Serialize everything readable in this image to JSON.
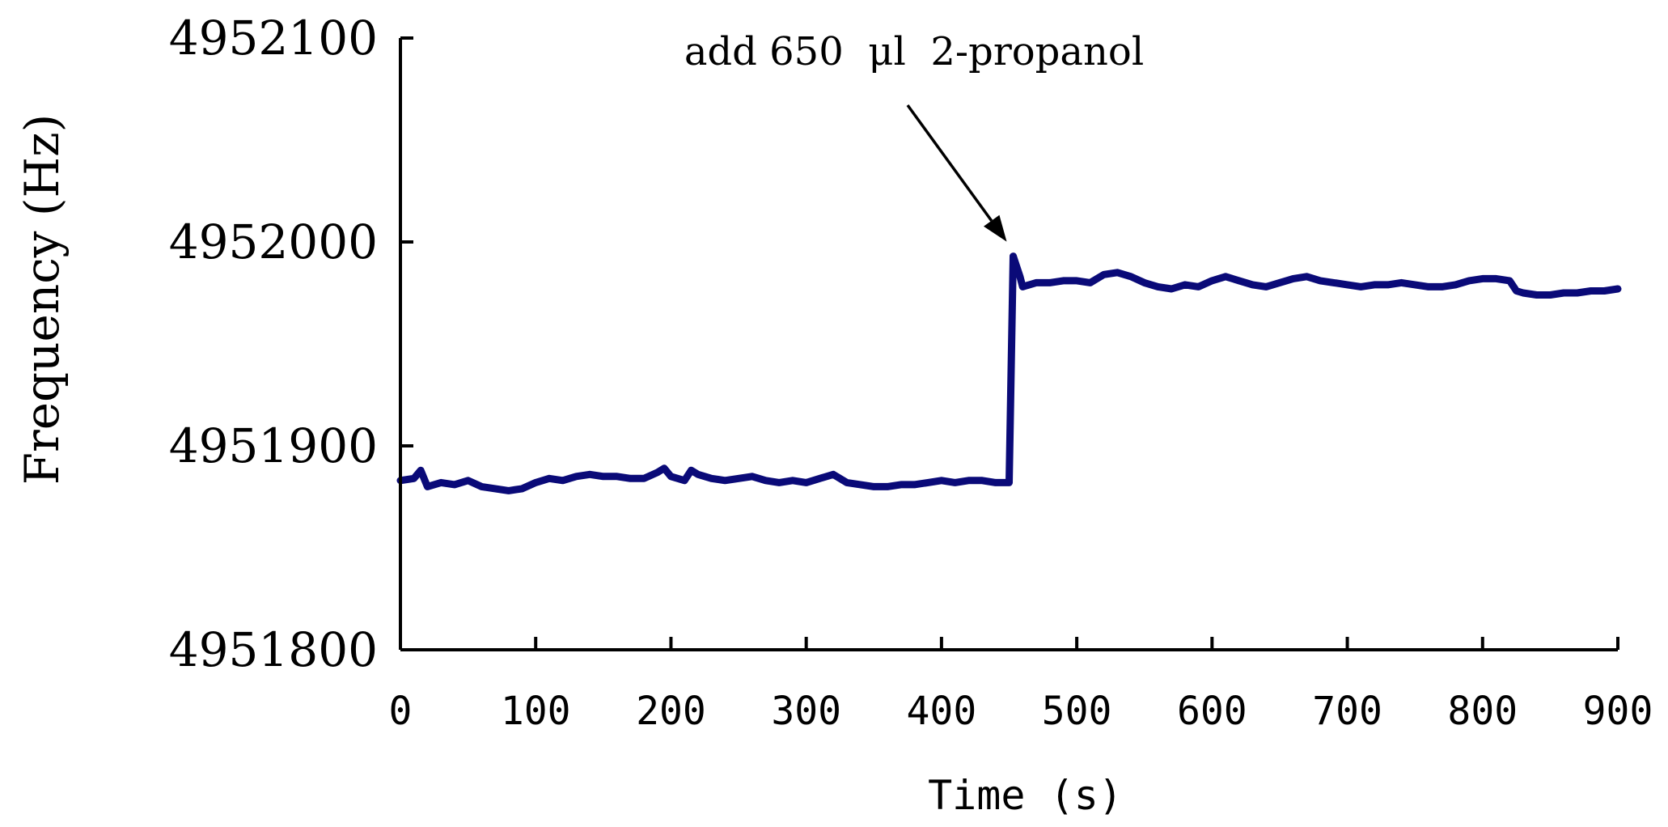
{
  "chart_data": {
    "type": "line",
    "title": "",
    "xlabel": "Time (s)",
    "ylabel": "Frequency (Hz)",
    "xlim": [
      0,
      900
    ],
    "ylim": [
      4951800,
      4952100
    ],
    "xticks": [
      "0",
      "100",
      "200",
      "300",
      "400",
      "500",
      "600",
      "700",
      "800",
      "900"
    ],
    "yticks": [
      "4951800",
      "4951900",
      "4952000",
      "4952100"
    ],
    "grid": false,
    "legend": "none",
    "annotation": {
      "text": "add 650  μl  2-propanol",
      "x": 453,
      "y": 4951993
    },
    "series": [
      {
        "color": "#0a0a78",
        "points": [
          [
            0,
            4951883
          ],
          [
            10,
            4951884
          ],
          [
            15,
            4951888
          ],
          [
            20,
            4951880
          ],
          [
            30,
            4951882
          ],
          [
            40,
            4951881
          ],
          [
            50,
            4951883
          ],
          [
            60,
            4951880
          ],
          [
            70,
            4951879
          ],
          [
            80,
            4951878
          ],
          [
            90,
            4951879
          ],
          [
            100,
            4951882
          ],
          [
            110,
            4951884
          ],
          [
            120,
            4951883
          ],
          [
            130,
            4951885
          ],
          [
            140,
            4951886
          ],
          [
            150,
            4951885
          ],
          [
            160,
            4951885
          ],
          [
            170,
            4951884
          ],
          [
            180,
            4951884
          ],
          [
            190,
            4951887
          ],
          [
            195,
            4951889
          ],
          [
            200,
            4951885
          ],
          [
            210,
            4951883
          ],
          [
            215,
            4951888
          ],
          [
            220,
            4951886
          ],
          [
            230,
            4951884
          ],
          [
            240,
            4951883
          ],
          [
            250,
            4951884
          ],
          [
            260,
            4951885
          ],
          [
            270,
            4951883
          ],
          [
            280,
            4951882
          ],
          [
            290,
            4951883
          ],
          [
            300,
            4951882
          ],
          [
            310,
            4951884
          ],
          [
            320,
            4951886
          ],
          [
            330,
            4951882
          ],
          [
            340,
            4951881
          ],
          [
            350,
            4951880
          ],
          [
            360,
            4951880
          ],
          [
            370,
            4951881
          ],
          [
            380,
            4951881
          ],
          [
            390,
            4951882
          ],
          [
            400,
            4951883
          ],
          [
            410,
            4951882
          ],
          [
            420,
            4951883
          ],
          [
            430,
            4951883
          ],
          [
            440,
            4951882
          ],
          [
            450,
            4951882
          ],
          [
            453,
            4951993
          ],
          [
            458,
            4951983
          ],
          [
            460,
            4951978
          ],
          [
            470,
            4951980
          ],
          [
            480,
            4951980
          ],
          [
            490,
            4951981
          ],
          [
            500,
            4951981
          ],
          [
            510,
            4951980
          ],
          [
            520,
            4951984
          ],
          [
            530,
            4951985
          ],
          [
            540,
            4951983
          ],
          [
            550,
            4951980
          ],
          [
            560,
            4951978
          ],
          [
            570,
            4951977
          ],
          [
            580,
            4951979
          ],
          [
            590,
            4951978
          ],
          [
            600,
            4951981
          ],
          [
            610,
            4951983
          ],
          [
            620,
            4951981
          ],
          [
            630,
            4951979
          ],
          [
            640,
            4951978
          ],
          [
            650,
            4951980
          ],
          [
            660,
            4951982
          ],
          [
            670,
            4951983
          ],
          [
            680,
            4951981
          ],
          [
            690,
            4951980
          ],
          [
            700,
            4951979
          ],
          [
            710,
            4951978
          ],
          [
            720,
            4951979
          ],
          [
            730,
            4951979
          ],
          [
            740,
            4951980
          ],
          [
            750,
            4951979
          ],
          [
            760,
            4951978
          ],
          [
            770,
            4951978
          ],
          [
            780,
            4951979
          ],
          [
            790,
            4951981
          ],
          [
            800,
            4951982
          ],
          [
            810,
            4951982
          ],
          [
            820,
            4951981
          ],
          [
            825,
            4951976
          ],
          [
            830,
            4951975
          ],
          [
            840,
            4951974
          ],
          [
            850,
            4951974
          ],
          [
            860,
            4951975
          ],
          [
            870,
            4951975
          ],
          [
            880,
            4951976
          ],
          [
            890,
            4951976
          ],
          [
            900,
            4951977
          ]
        ]
      }
    ]
  }
}
